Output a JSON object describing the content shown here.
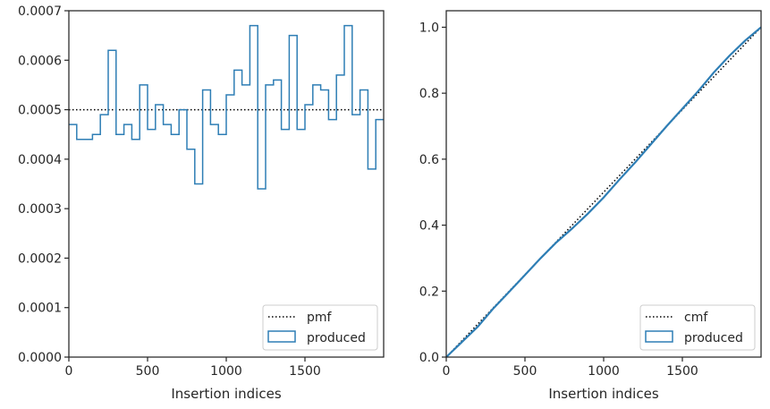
{
  "chart_data": [
    {
      "type": "step",
      "xlabel": "Insertion indices",
      "ylabel": "",
      "xlim": [
        0,
        2000
      ],
      "ylim": [
        0,
        0.0007
      ],
      "xticks": [
        0,
        500,
        1000,
        1500
      ],
      "xtick_labels": [
        "0",
        "500",
        "1000",
        "1500"
      ],
      "yticks": [
        0,
        0.0001,
        0.0002,
        0.0003,
        0.0004,
        0.0005,
        0.0006,
        0.0007
      ],
      "ytick_labels": [
        "0.0000",
        "0.0001",
        "0.0002",
        "0.0003",
        "0.0004",
        "0.0005",
        "0.0006",
        "0.0007"
      ],
      "legend_position": "lower-right",
      "series": [
        {
          "name": "pmf",
          "style": "dotted",
          "color": "#000000",
          "x": [
            0,
            2000
          ],
          "values": [
            0.0005,
            0.0005
          ]
        },
        {
          "name": "produced",
          "style": "step",
          "color": "#2e7eb5",
          "bin_edges": [
            0,
            50,
            100,
            150,
            200,
            250,
            300,
            350,
            400,
            450,
            500,
            550,
            600,
            650,
            700,
            750,
            800,
            850,
            900,
            950,
            1000,
            1050,
            1100,
            1150,
            1200,
            1250,
            1300,
            1350,
            1400,
            1450,
            1500,
            1550,
            1600,
            1650,
            1700,
            1750,
            1800,
            1850,
            1900,
            1950,
            2000
          ],
          "values": [
            0.00047,
            0.00044,
            0.00044,
            0.00045,
            0.00049,
            0.00062,
            0.00045,
            0.00047,
            0.00044,
            0.00055,
            0.00046,
            0.00051,
            0.00047,
            0.00045,
            0.0005,
            0.00042,
            0.00035,
            0.00054,
            0.00047,
            0.00045,
            0.00053,
            0.00058,
            0.00055,
            0.00067,
            0.00034,
            0.00055,
            0.00056,
            0.00046,
            0.00065,
            0.00046,
            0.00051,
            0.00055,
            0.00054,
            0.00048,
            0.00057,
            0.00067,
            0.00049,
            0.00054,
            0.00038,
            0.00048
          ]
        }
      ]
    },
    {
      "type": "line",
      "xlabel": "Insertion indices",
      "ylabel": "",
      "xlim": [
        0,
        2000
      ],
      "ylim": [
        0,
        1.05
      ],
      "xticks": [
        0,
        500,
        1000,
        1500
      ],
      "xtick_labels": [
        "0",
        "500",
        "1000",
        "1500"
      ],
      "yticks": [
        0,
        0.2,
        0.4,
        0.6,
        0.8,
        1.0
      ],
      "ytick_labels": [
        "0.0",
        "0.2",
        "0.4",
        "0.6",
        "0.8",
        "1.0"
      ],
      "legend_position": "lower-right",
      "series": [
        {
          "name": "cmf",
          "style": "dotted",
          "color": "#000000",
          "x": [
            0,
            2000
          ],
          "values": [
            0,
            1.0
          ]
        },
        {
          "name": "produced",
          "style": "solid",
          "color": "#2e7eb5",
          "x": [
            0,
            100,
            200,
            300,
            400,
            500,
            600,
            700,
            800,
            900,
            1000,
            1100,
            1200,
            1300,
            1400,
            1500,
            1600,
            1700,
            1800,
            1900,
            2000
          ],
          "values": [
            0,
            0.046,
            0.092,
            0.148,
            0.198,
            0.249,
            0.3,
            0.348,
            0.39,
            0.435,
            0.484,
            0.538,
            0.59,
            0.645,
            0.7,
            0.753,
            0.806,
            0.863,
            0.914,
            0.96,
            1.0
          ]
        }
      ]
    }
  ]
}
